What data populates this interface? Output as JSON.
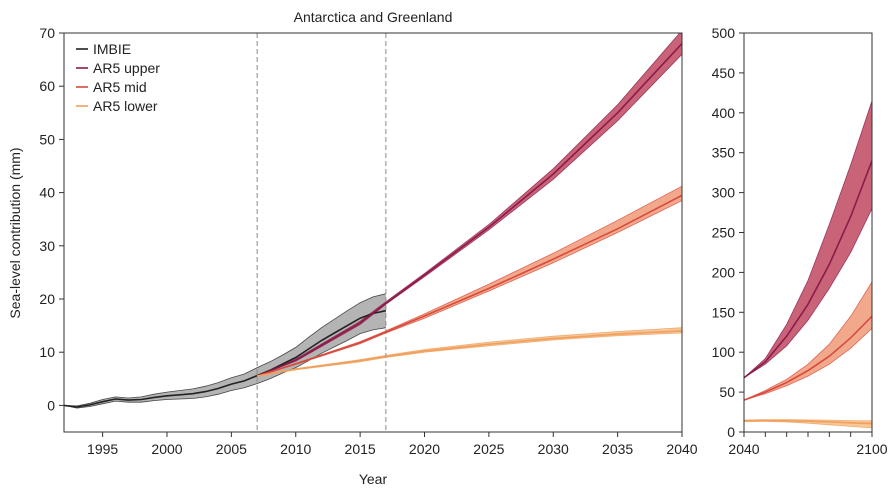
{
  "chart_data": [
    {
      "panel": "main",
      "type": "line",
      "title": "Antarctica and Greenland",
      "xlabel": "Year",
      "ylabel": "Sea-level contribution (mm)",
      "xlim": [
        1992,
        2040
      ],
      "ylim": [
        -5,
        70
      ],
      "xticks": [
        1995,
        2000,
        2005,
        2010,
        2015,
        2020,
        2025,
        2030,
        2035,
        2040
      ],
      "yticks": [
        0,
        10,
        20,
        30,
        40,
        50,
        60,
        70
      ],
      "vlines": [
        2007,
        2017
      ],
      "legend": {
        "position": "top-left",
        "entries": [
          "IMBIE",
          "AR5 upper",
          "AR5 mid",
          "AR5 lower"
        ]
      },
      "series": [
        {
          "name": "IMBIE",
          "color": "#222222",
          "band_color": "#b4b4b4",
          "x": [
            1992,
            1993,
            1994,
            1995,
            1996,
            1997,
            1998,
            1999,
            2000,
            2001,
            2002,
            2003,
            2004,
            2005,
            2006,
            2007,
            2008,
            2009,
            2010,
            2011,
            2012,
            2013,
            2014,
            2015,
            2016,
            2017
          ],
          "y": [
            0,
            -0.3,
            0.1,
            0.7,
            1.2,
            1.0,
            1.1,
            1.5,
            1.8,
            2.0,
            2.2,
            2.6,
            3.2,
            4.0,
            4.6,
            5.6,
            6.6,
            7.8,
            9.0,
            10.6,
            12.2,
            13.6,
            15.0,
            16.4,
            17.3,
            17.8
          ],
          "lower": [
            0,
            -0.5,
            -0.2,
            0.3,
            0.8,
            0.6,
            0.6,
            0.9,
            1.1,
            1.2,
            1.3,
            1.6,
            2.1,
            2.8,
            3.3,
            4.1,
            5.0,
            6.1,
            7.1,
            8.4,
            9.8,
            11.0,
            12.2,
            13.5,
            14.2,
            14.6
          ],
          "upper": [
            0,
            -0.1,
            0.4,
            1.1,
            1.6,
            1.4,
            1.6,
            2.1,
            2.5,
            2.8,
            3.1,
            3.6,
            4.3,
            5.2,
            5.9,
            7.1,
            8.2,
            9.5,
            10.9,
            12.8,
            14.6,
            16.2,
            17.8,
            19.3,
            20.4,
            21.0
          ]
        },
        {
          "name": "AR5 upper",
          "color": "#8c1a4b",
          "band_color": "#c96478",
          "x": [
            2007,
            2010,
            2015,
            2017,
            2020,
            2025,
            2030,
            2035,
            2040
          ],
          "y": [
            5.5,
            8.5,
            15.5,
            19.2,
            24.5,
            33.5,
            43.5,
            55.0,
            68.0
          ],
          "lower": [
            5.5,
            8.3,
            15.2,
            19.0,
            24.2,
            33.0,
            42.5,
            53.5,
            66.0
          ],
          "upper": [
            5.5,
            8.7,
            15.8,
            19.5,
            24.8,
            34.0,
            44.5,
            56.5,
            70.5
          ]
        },
        {
          "name": "AR5 mid",
          "color": "#d94a3d",
          "band_color": "#f2a98b",
          "x": [
            2007,
            2010,
            2015,
            2017,
            2020,
            2025,
            2030,
            2035,
            2040
          ],
          "y": [
            5.5,
            7.8,
            11.8,
            13.8,
            16.8,
            22.0,
            27.5,
            33.2,
            39.5
          ],
          "lower": [
            5.5,
            7.7,
            11.6,
            13.6,
            16.4,
            21.5,
            26.8,
            32.5,
            38.5
          ],
          "upper": [
            5.5,
            7.9,
            12.0,
            14.0,
            17.2,
            22.8,
            28.6,
            34.8,
            41.2
          ]
        },
        {
          "name": "AR5 lower",
          "color": "#f0a05c",
          "band_color": "#f7c79a",
          "x": [
            2007,
            2010,
            2015,
            2017,
            2020,
            2025,
            2030,
            2035,
            2040
          ],
          "y": [
            5.5,
            6.8,
            8.4,
            9.2,
            10.2,
            11.5,
            12.6,
            13.4,
            14.0
          ],
          "lower": [
            5.5,
            6.7,
            8.2,
            9.0,
            10.0,
            11.2,
            12.3,
            13.1,
            13.6
          ],
          "upper": [
            5.5,
            6.9,
            8.6,
            9.4,
            10.5,
            11.9,
            13.0,
            13.9,
            14.6
          ]
        }
      ]
    },
    {
      "panel": "extension",
      "type": "line",
      "xlim": [
        2040,
        2100
      ],
      "ylim": [
        0,
        500
      ],
      "xticks": [
        2040,
        2100
      ],
      "xminor": [
        2050,
        2060,
        2070,
        2080,
        2090
      ],
      "yticks": [
        0,
        50,
        100,
        150,
        200,
        250,
        300,
        350,
        400,
        450,
        500
      ],
      "series": [
        {
          "name": "AR5 upper",
          "color": "#8c1a4b",
          "band_color": "#c96478",
          "x": [
            2040,
            2050,
            2060,
            2070,
            2080,
            2090,
            2100
          ],
          "y": [
            68,
            88,
            120,
            160,
            210,
            270,
            340
          ],
          "lower": [
            68,
            85,
            108,
            140,
            180,
            225,
            280
          ],
          "upper": [
            68,
            92,
            135,
            190,
            260,
            335,
            415
          ]
        },
        {
          "name": "AR5 mid",
          "color": "#d94a3d",
          "band_color": "#f2a98b",
          "x": [
            2040,
            2050,
            2060,
            2070,
            2080,
            2090,
            2100
          ],
          "y": [
            40,
            50,
            62,
            77,
            95,
            118,
            145
          ],
          "lower": [
            40,
            48,
            58,
            70,
            85,
            105,
            130
          ],
          "upper": [
            40,
            52,
            66,
            85,
            110,
            145,
            188
          ]
        },
        {
          "name": "AR5 lower",
          "color": "#f0a05c",
          "band_color": "#f7c79a",
          "x": [
            2040,
            2050,
            2060,
            2070,
            2080,
            2090,
            2100
          ],
          "y": [
            14,
            14.5,
            14.2,
            13.5,
            12.5,
            11.5,
            10.5
          ],
          "lower": [
            13,
            13.2,
            12.5,
            11,
            9,
            7,
            5
          ],
          "upper": [
            15,
            15.5,
            15.5,
            15.2,
            14.8,
            14.3,
            14
          ]
        }
      ]
    }
  ]
}
